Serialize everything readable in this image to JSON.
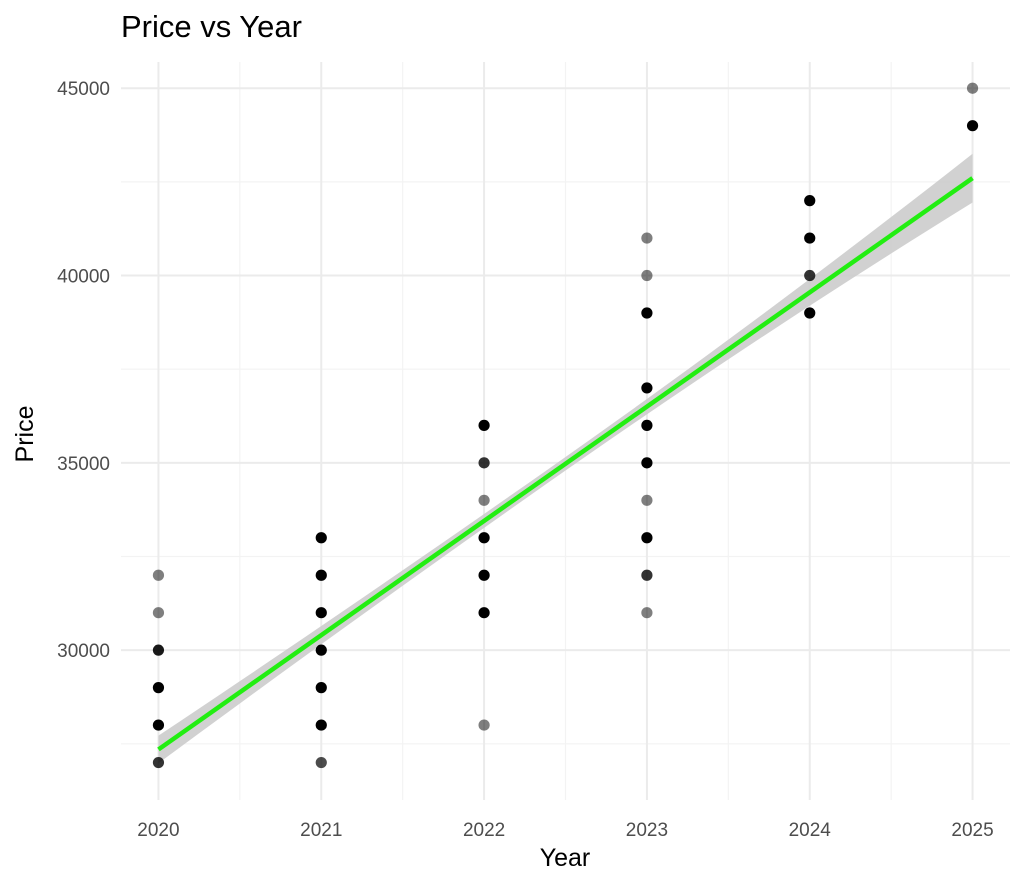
{
  "chart_data": {
    "type": "scatter",
    "title": "Price vs Year",
    "xlabel": "Year",
    "ylabel": "Price",
    "xlim": [
      2019.77,
      2025.23
    ],
    "ylim": [
      26000,
      45700
    ],
    "x_ticks": [
      2020,
      2021,
      2022,
      2023,
      2024,
      2025
    ],
    "y_ticks": [
      30000,
      35000,
      40000,
      45000
    ],
    "grid": true,
    "legend": "none",
    "points": [
      {
        "x": 2020,
        "y": 27000,
        "alpha": 0.8
      },
      {
        "x": 2020,
        "y": 28000,
        "alpha": 1.0
      },
      {
        "x": 2020,
        "y": 29000,
        "alpha": 1.0
      },
      {
        "x": 2020,
        "y": 30000,
        "alpha": 0.9
      },
      {
        "x": 2020,
        "y": 31000,
        "alpha": 0.5
      },
      {
        "x": 2020,
        "y": 32000,
        "alpha": 0.5
      },
      {
        "x": 2021,
        "y": 27000,
        "alpha": 0.7
      },
      {
        "x": 2021,
        "y": 28000,
        "alpha": 1.0
      },
      {
        "x": 2021,
        "y": 29000,
        "alpha": 1.0
      },
      {
        "x": 2021,
        "y": 30000,
        "alpha": 1.0
      },
      {
        "x": 2021,
        "y": 31000,
        "alpha": 1.0
      },
      {
        "x": 2021,
        "y": 32000,
        "alpha": 1.0
      },
      {
        "x": 2021,
        "y": 33000,
        "alpha": 1.0
      },
      {
        "x": 2022,
        "y": 28000,
        "alpha": 0.5
      },
      {
        "x": 2022,
        "y": 31000,
        "alpha": 1.0
      },
      {
        "x": 2022,
        "y": 32000,
        "alpha": 1.0
      },
      {
        "x": 2022,
        "y": 33000,
        "alpha": 1.0
      },
      {
        "x": 2022,
        "y": 34000,
        "alpha": 0.5
      },
      {
        "x": 2022,
        "y": 35000,
        "alpha": 0.8
      },
      {
        "x": 2022,
        "y": 36000,
        "alpha": 1.0
      },
      {
        "x": 2023,
        "y": 31000,
        "alpha": 0.5
      },
      {
        "x": 2023,
        "y": 32000,
        "alpha": 0.8
      },
      {
        "x": 2023,
        "y": 33000,
        "alpha": 1.0
      },
      {
        "x": 2023,
        "y": 34000,
        "alpha": 0.5
      },
      {
        "x": 2023,
        "y": 35000,
        "alpha": 1.0
      },
      {
        "x": 2023,
        "y": 36000,
        "alpha": 1.0
      },
      {
        "x": 2023,
        "y": 37000,
        "alpha": 1.0
      },
      {
        "x": 2023,
        "y": 39000,
        "alpha": 1.0
      },
      {
        "x": 2023,
        "y": 40000,
        "alpha": 0.5
      },
      {
        "x": 2023,
        "y": 41000,
        "alpha": 0.5
      },
      {
        "x": 2024,
        "y": 39000,
        "alpha": 1.0
      },
      {
        "x": 2024,
        "y": 40000,
        "alpha": 0.8
      },
      {
        "x": 2024,
        "y": 41000,
        "alpha": 1.0
      },
      {
        "x": 2024,
        "y": 42000,
        "alpha": 1.0
      },
      {
        "x": 2025,
        "y": 44000,
        "alpha": 1.0
      },
      {
        "x": 2025,
        "y": 45000,
        "alpha": 0.5
      }
    ],
    "trend": {
      "type": "linear",
      "x": [
        2020,
        2025
      ],
      "y": [
        27350,
        42600
      ],
      "ci_half_width": [
        400,
        650
      ],
      "color": "#22ee11",
      "band_color": "#cccccc"
    },
    "point_color": "#000000"
  }
}
